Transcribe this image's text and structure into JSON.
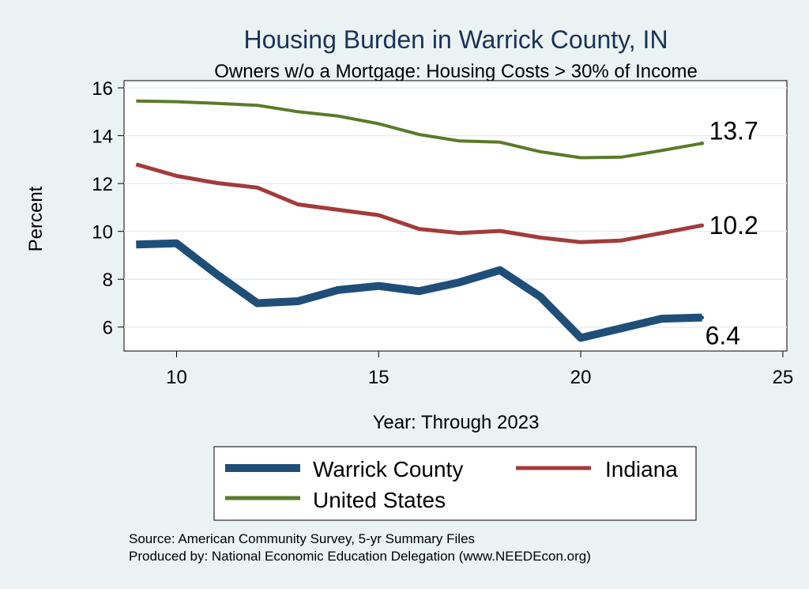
{
  "chart_data": {
    "type": "line",
    "title": "Housing Burden in Warrick County, IN",
    "subtitle": "Owners w/o a Mortgage: Housing Costs > 30% of Income",
    "xlabel": "Year: Through 2023",
    "ylabel": "Percent",
    "xlim": [
      8.7,
      25.1
    ],
    "ylim": [
      5.0,
      16.3
    ],
    "xticks": [
      10,
      15,
      20,
      25
    ],
    "yticks": [
      6,
      8,
      10,
      12,
      14,
      16
    ],
    "grid": true,
    "legend_position": "bottom",
    "series": [
      {
        "name": "Warrick County",
        "color": "#1f4e79",
        "x": [
          9,
          10,
          11,
          12,
          13,
          14,
          15,
          16,
          17,
          18,
          19,
          20,
          21,
          22,
          23
        ],
        "values": [
          9.45,
          9.5,
          8.2,
          7.0,
          7.08,
          7.55,
          7.72,
          7.5,
          7.87,
          8.38,
          7.27,
          5.55,
          5.95,
          6.35,
          6.4
        ],
        "end_label": "6.4"
      },
      {
        "name": "Indiana",
        "color": "#a33b3b",
        "x": [
          9,
          10,
          11,
          12,
          13,
          14,
          15,
          16,
          17,
          18,
          19,
          20,
          21,
          22,
          23
        ],
        "values": [
          12.8,
          12.32,
          12.02,
          11.83,
          11.13,
          10.9,
          10.68,
          10.1,
          9.93,
          10.02,
          9.74,
          9.55,
          9.62,
          9.93,
          10.25
        ],
        "end_label": "10.2"
      },
      {
        "name": "United States",
        "color": "#5a7a2a",
        "x": [
          9,
          10,
          11,
          12,
          13,
          14,
          15,
          16,
          17,
          18,
          19,
          20,
          21,
          22,
          23
        ],
        "values": [
          15.45,
          15.42,
          15.35,
          15.27,
          15.0,
          14.82,
          14.5,
          14.05,
          13.78,
          13.73,
          13.33,
          13.08,
          13.1,
          13.38,
          13.68
        ],
        "end_label": "13.7"
      }
    ]
  },
  "legend": {
    "items": [
      "Warrick County",
      "Indiana",
      "United States"
    ]
  },
  "source": {
    "line1": "Source: American Community Survey, 5-yr Summary Files",
    "line2": "Produced by: National Economic Education Delegation (www.NEEDEcon.org)"
  }
}
